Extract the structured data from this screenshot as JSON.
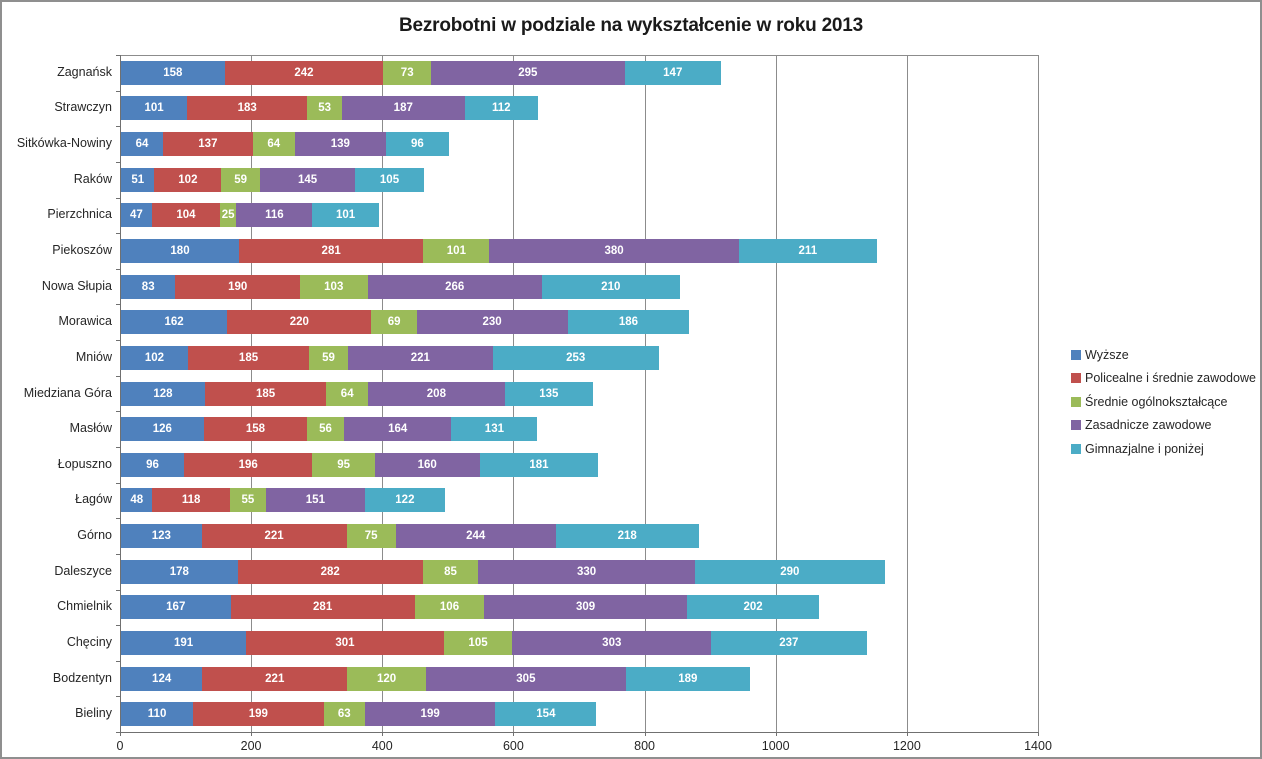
{
  "chart_data": {
    "type": "bar",
    "orientation": "horizontal",
    "stacked": true,
    "title": "Bezrobotni w podziale na wykształcenie w roku 2013",
    "categories": [
      "Zagnańsk",
      "Strawczyn",
      "Sitkówka-Nowiny",
      "Raków",
      "Pierzchnica",
      "Piekoszów",
      "Nowa Słupia",
      "Morawica",
      "Mniów",
      "Miedziana Góra",
      "Masłów",
      "Łopuszno",
      "Łagów",
      "Górno",
      "Daleszyce",
      "Chmielnik",
      "Chęciny",
      "Bodzentyn",
      "Bieliny"
    ],
    "series": [
      {
        "name": "Wyższe",
        "color": "#4F81BD",
        "values": [
          158,
          101,
          64,
          51,
          47,
          180,
          83,
          162,
          102,
          128,
          126,
          96,
          48,
          123,
          178,
          167,
          191,
          124,
          110
        ]
      },
      {
        "name": "Policealne i średnie zawodowe",
        "color": "#C0504D",
        "values": [
          242,
          183,
          137,
          102,
          104,
          281,
          190,
          220,
          185,
          185,
          158,
          196,
          118,
          221,
          282,
          281,
          301,
          221,
          199
        ]
      },
      {
        "name": "Średnie ogólnokształcące",
        "color": "#9BBB59",
        "values": [
          73,
          53,
          64,
          59,
          25,
          101,
          103,
          69,
          59,
          64,
          56,
          95,
          55,
          75,
          85,
          106,
          105,
          120,
          63
        ]
      },
      {
        "name": "Zasadnicze zawodowe",
        "color": "#8064A2",
        "values": [
          295,
          187,
          139,
          145,
          116,
          380,
          266,
          230,
          221,
          208,
          164,
          160,
          151,
          244,
          330,
          309,
          303,
          305,
          199
        ]
      },
      {
        "name": "Gimnazjalne i poniżej",
        "color": "#4BACC6",
        "values": [
          147,
          112,
          96,
          105,
          101,
          211,
          210,
          186,
          253,
          135,
          131,
          181,
          122,
          218,
          290,
          202,
          237,
          189,
          154
        ]
      }
    ],
    "x_ticks": [
      0,
      200,
      400,
      600,
      800,
      1000,
      1200,
      1400
    ],
    "xlim": [
      0,
      1400
    ],
    "grid": "vertical-major",
    "legend_position": "right",
    "grid_color": "#8C8C8C",
    "axis_color": "#707070",
    "bar_label_color": "#FFFFFF",
    "text_color": "#262626"
  }
}
